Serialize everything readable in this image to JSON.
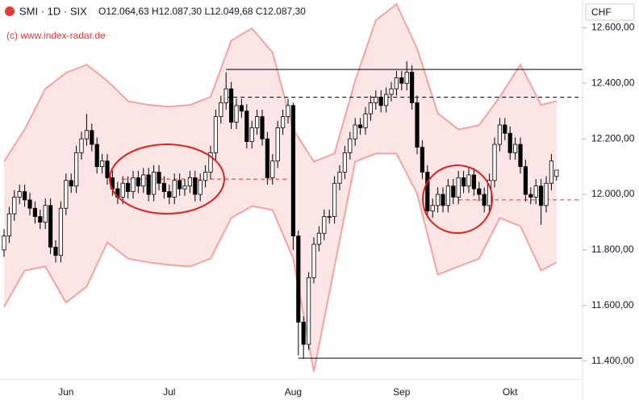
{
  "chart_data": {
    "type": "candlestick",
    "symbol": "SMI · 1D · SIX",
    "ohlc_text": "O12.064,63 H12.087,30 L12.049,68 C12.087,30",
    "copyright": "(c) www.index-radar.de",
    "currency": "CHF",
    "categories": [
      null,
      null,
      null,
      null,
      null,
      null,
      null,
      null,
      null,
      null,
      null,
      null,
      "Jun",
      null,
      null,
      null,
      null,
      null,
      null,
      null,
      null,
      null,
      null,
      null,
      null,
      null,
      null,
      null,
      null,
      null,
      null,
      null,
      "Jul",
      null,
      null,
      null,
      null,
      null,
      null,
      null,
      null,
      null,
      null,
      null,
      null,
      null,
      null,
      null,
      null,
      null,
      null,
      null,
      null,
      null,
      null,
      null,
      "Aug",
      null,
      null,
      null,
      null,
      null,
      null,
      null,
      null,
      null,
      null,
      null,
      null,
      null,
      null,
      null,
      null,
      null,
      null,
      null,
      null,
      "Sep",
      null,
      null,
      null,
      null,
      null,
      null,
      null,
      null,
      null,
      null,
      null,
      null,
      null,
      null,
      null,
      null,
      null,
      null,
      null,
      null,
      "Okt",
      null,
      null,
      null,
      null,
      null,
      null,
      null,
      null,
      null
    ],
    "open": [
      11800,
      11850,
      11930,
      11990,
      12010,
      11980,
      11950,
      11920,
      11900,
      11960,
      11810,
      11780,
      11950,
      12050,
      12030,
      12150,
      12200,
      12230,
      12180,
      12100,
      12120,
      12060,
      12020,
      11990,
      12040,
      12010,
      12060,
      12030,
      12070,
      12000,
      12080,
      12040,
      12010,
      11990,
      12050,
      12020,
      12030,
      12060,
      12000,
      12050,
      12080,
      12150,
      12280,
      12330,
      12380,
      12260,
      12320,
      12300,
      12190,
      12240,
      12280,
      12200,
      12060,
      12120,
      12240,
      12280,
      12320,
      11850,
      11540,
      11460,
      11700,
      11820,
      11860,
      11920,
      11920,
      12040,
      12080,
      12150,
      12200,
      12250,
      12240,
      12290,
      12330,
      12350,
      12320,
      12360,
      12380,
      12420,
      12400,
      12440,
      12330,
      12170,
      12080,
      11940,
      11960,
      12000,
      11960,
      12030,
      11990,
      12060,
      12030,
      12070,
      12020,
      12000,
      11960,
      12050,
      12180,
      12250,
      12220,
      12150,
      12180,
      12100,
      12000,
      11990,
      12030,
      11960,
      12040,
      12064.63
    ],
    "high": [
      11875,
      11955,
      12015,
      12035,
      12035,
      12005,
      11975,
      11945,
      11985,
      11985,
      11835,
      11975,
      12075,
      12075,
      12175,
      12225,
      12290,
      12255,
      12205,
      12145,
      12145,
      12085,
      12045,
      12065,
      12065,
      12085,
      12085,
      12095,
      12095,
      12105,
      12105,
      12065,
      12035,
      12075,
      12075,
      12055,
      12085,
      12085,
      12075,
      12105,
      12175,
      12305,
      12355,
      12440,
      12405,
      12345,
      12345,
      12325,
      12265,
      12305,
      12305,
      12225,
      12145,
      12265,
      12305,
      12345,
      12330,
      11870,
      11560,
      11720,
      11845,
      11885,
      11945,
      11945,
      12065,
      12105,
      12175,
      12225,
      12275,
      12275,
      12315,
      12355,
      12375,
      12375,
      12385,
      12405,
      12445,
      12445,
      12480,
      12465,
      12355,
      12195,
      12105,
      11985,
      12025,
      12025,
      12055,
      12055,
      12085,
      12085,
      12095,
      12095,
      12045,
      12025,
      12075,
      12205,
      12275,
      12275,
      12245,
      12205,
      12205,
      12125,
      12025,
      12055,
      12055,
      12065,
      12145,
      12087.3
    ],
    "low": [
      11775,
      11825,
      11905,
      11965,
      11955,
      11925,
      11895,
      11875,
      11875,
      11785,
      11755,
      11755,
      11925,
      12005,
      12005,
      12125,
      12175,
      12155,
      12075,
      12075,
      12035,
      11995,
      11965,
      11965,
      11985,
      11985,
      12005,
      12005,
      11975,
      11975,
      12015,
      11985,
      11965,
      11965,
      11995,
      11995,
      12005,
      11975,
      11975,
      12025,
      12055,
      12125,
      12255,
      12305,
      12235,
      12235,
      12275,
      12165,
      12165,
      12215,
      12175,
      12035,
      12035,
      12095,
      12215,
      12255,
      11800,
      11420,
      11410,
      11440,
      11680,
      11795,
      11835,
      11895,
      11895,
      12015,
      12055,
      12125,
      12175,
      12215,
      12215,
      12265,
      12305,
      12295,
      12295,
      12335,
      12355,
      12375,
      12375,
      12305,
      12145,
      12055,
      11915,
      11915,
      11935,
      11935,
      11935,
      11965,
      11965,
      12005,
      12005,
      11995,
      11975,
      11935,
      11935,
      12025,
      12155,
      12195,
      12125,
      12125,
      12075,
      11975,
      11965,
      11965,
      11890,
      11935,
      12015,
      12049.68
    ],
    "close": [
      11850,
      11930,
      11990,
      12010,
      11980,
      11950,
      11920,
      11900,
      11960,
      11810,
      11780,
      11950,
      12050,
      12030,
      12150,
      12200,
      12230,
      12180,
      12100,
      12120,
      12060,
      12020,
      11990,
      12040,
      12010,
      12060,
      12030,
      12070,
      12000,
      12080,
      12040,
      12010,
      11990,
      12050,
      12020,
      12030,
      12060,
      12000,
      12050,
      12080,
      12150,
      12280,
      12330,
      12380,
      12260,
      12320,
      12300,
      12190,
      12240,
      12280,
      12200,
      12060,
      12120,
      12240,
      12280,
      12320,
      11850,
      11540,
      11460,
      11700,
      11820,
      11860,
      11920,
      11920,
      12040,
      12080,
      12150,
      12200,
      12250,
      12240,
      12290,
      12330,
      12350,
      12320,
      12360,
      12380,
      12420,
      12400,
      12440,
      12330,
      12170,
      12080,
      11940,
      11960,
      12000,
      11960,
      12030,
      11990,
      12060,
      12030,
      12070,
      12020,
      12000,
      11960,
      12050,
      12180,
      12250,
      12220,
      12150,
      12180,
      12100,
      12000,
      11990,
      12030,
      11960,
      12040,
      12120,
      12087.3
    ],
    "up_color": "#ffffff",
    "down_color": "#000000",
    "bands": {
      "x": [
        0,
        4,
        8,
        12,
        16,
        20,
        24,
        28,
        32,
        36,
        40,
        44,
        48,
        52,
        56,
        60,
        64,
        68,
        72,
        76,
        80,
        84,
        88,
        92,
        96,
        100,
        104,
        107
      ],
      "upper": [
        12118,
        12234,
        12380,
        12438,
        12467,
        12409,
        12336,
        12322,
        12316,
        12322,
        12351,
        12554,
        12598,
        12511,
        12234,
        12118,
        12147,
        12409,
        12627,
        12685,
        12525,
        12292,
        12234,
        12249,
        12351,
        12467,
        12322,
        12336
      ],
      "lower": [
        11595,
        11726,
        11740,
        11610,
        11668,
        11827,
        11769,
        11755,
        11746,
        11740,
        11769,
        11915,
        11958,
        11944,
        11769,
        11362,
        11740,
        12118,
        12147,
        12147,
        12002,
        11711,
        11740,
        11769,
        11915,
        11886,
        11726,
        11755
      ],
      "color": "#f4a3a3"
    },
    "levels": [
      {
        "value": 12450,
        "start": 43,
        "end": 112,
        "style": "solid",
        "color": "#000000"
      },
      {
        "value": 12350,
        "start": 43,
        "end": 112,
        "style": "dashed",
        "color": "#000000"
      },
      {
        "value": 11410,
        "start": 57,
        "end": 112,
        "style": "solid",
        "color": "#000000"
      },
      {
        "value": 12055,
        "start": 23,
        "end": 55,
        "style": "dashed",
        "color": "#e03030"
      },
      {
        "value": 11980,
        "start": 88,
        "end": 112,
        "style": "dashed",
        "color": "#e03030"
      }
    ],
    "ylim": [
      11335,
      12700
    ],
    "yticks": [
      {
        "value": 11400,
        "label": "11.400,00"
      },
      {
        "value": 11600,
        "label": "11.600,00"
      },
      {
        "value": 11800,
        "label": "11.800,00"
      },
      {
        "value": 12000,
        "label": "12.000,00"
      },
      {
        "value": 12200,
        "label": "12.200,00"
      },
      {
        "value": 12400,
        "label": "12.400,00"
      },
      {
        "value": 12600,
        "label": "12.600,00"
      }
    ]
  }
}
